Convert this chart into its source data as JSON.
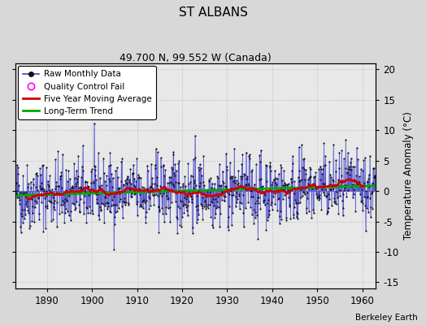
{
  "title": "ST ALBANS",
  "subtitle": "49.700 N, 99.552 W (Canada)",
  "ylabel": "Temperature Anomaly (°C)",
  "credit": "Berkeley Earth",
  "year_start": 1883,
  "year_end": 1962,
  "xlim": [
    1883,
    1963
  ],
  "ylim": [
    -16,
    21
  ],
  "yticks": [
    -15,
    -10,
    -5,
    0,
    5,
    10,
    15,
    20
  ],
  "xticks": [
    1890,
    1900,
    1910,
    1920,
    1930,
    1940,
    1950,
    1960
  ],
  "bg_color": "#d8d8d8",
  "plot_bg_color": "#e8e8e8",
  "raw_line_color": "#4444cc",
  "raw_marker_color": "#111111",
  "moving_avg_color": "#cc0000",
  "trend_color": "#00aa00",
  "seed": 42
}
